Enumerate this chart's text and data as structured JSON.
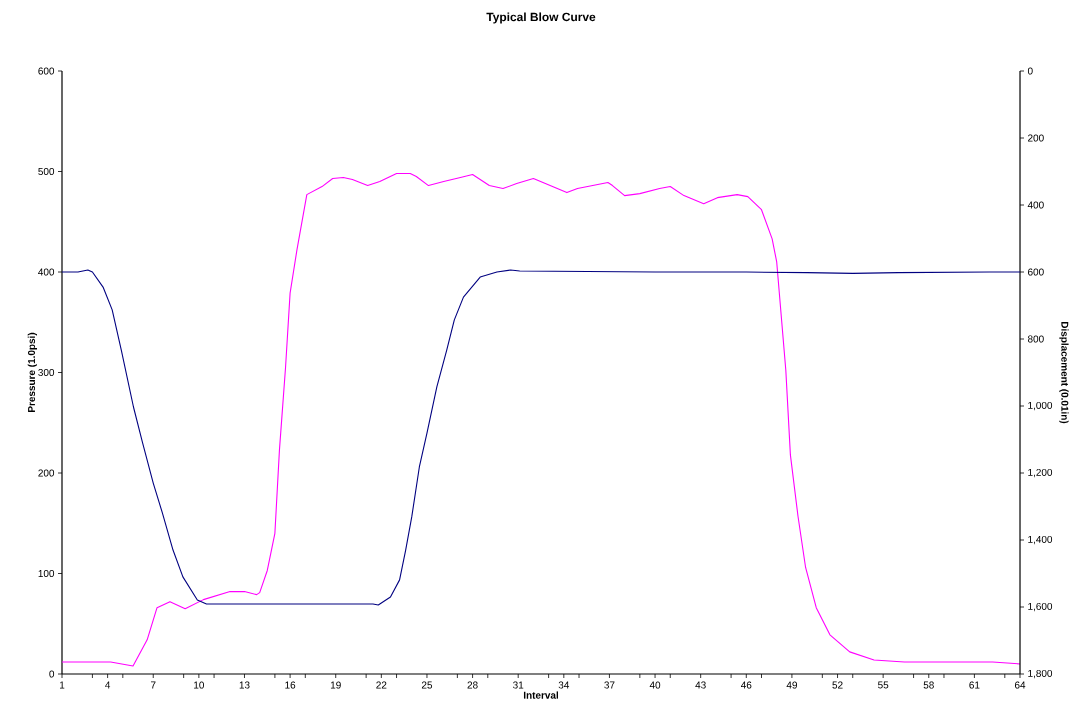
{
  "chart_data": {
    "type": "line",
    "title": "Typical Blow Curve",
    "xlabel": "Interval",
    "ylabel": "Pressure (1.0psi)",
    "y2label": "Displacement (0.01in)",
    "xlim": [
      1,
      64
    ],
    "xticks": [
      1,
      {
        "value": 3,
        "label": null
      },
      4,
      {
        "value": 5,
        "label": null
      },
      7,
      {
        "value": 9,
        "label": null
      },
      10,
      {
        "value": 11,
        "label": null
      },
      13,
      {
        "value": 15,
        "label": null
      },
      16,
      {
        "value": 17,
        "label": null
      },
      19,
      {
        "value": 21,
        "label": null
      },
      22,
      {
        "value": 23,
        "label": null
      },
      25,
      {
        "value": 27,
        "label": null
      },
      28,
      {
        "value": 29,
        "label": null
      },
      31,
      {
        "value": 33,
        "label": null
      },
      34,
      {
        "value": 35,
        "label": null
      },
      37,
      {
        "value": 39,
        "label": null
      },
      40,
      {
        "value": 41,
        "label": null
      },
      43,
      {
        "value": 45,
        "label": null
      },
      46,
      {
        "value": 47,
        "label": null
      },
      49,
      {
        "value": 51,
        "label": null
      },
      52,
      {
        "value": 53,
        "label": null
      },
      55,
      {
        "value": 57,
        "label": null
      },
      58,
      {
        "value": 59,
        "label": null
      },
      61,
      {
        "value": 63,
        "label": null
      },
      64
    ],
    "ylim": [
      0,
      600
    ],
    "yticks": [
      0,
      100,
      200,
      300,
      400,
      500,
      600
    ],
    "y2lim": [
      1800,
      0
    ],
    "y2ticks": [
      0,
      200,
      400,
      600,
      800,
      {
        "value": 1000,
        "label": "1,000"
      },
      {
        "value": 1200,
        "label": "1,200"
      },
      {
        "value": 1400,
        "label": "1,400"
      },
      {
        "value": 1600,
        "label": "1,600"
      },
      {
        "value": 1800,
        "label": "1,800"
      }
    ],
    "series": [
      {
        "color": "#ff00ff",
        "x": [
          1,
          4.2,
          5.67,
          6.6,
          7.25,
          8.1,
          9.1,
          10.3,
          12.05,
          13,
          13.8,
          14,
          14.5,
          15,
          15.3,
          15.7,
          16,
          16.45,
          17.1,
          18.1,
          18.8,
          19.5,
          20.1,
          21.1,
          21.9,
          23,
          23.9,
          24.3,
          25.1,
          26.1,
          27.2,
          28,
          29.1,
          30,
          30.9,
          32,
          33.1,
          34.2,
          34.9,
          35.9,
          36.9,
          37.2,
          38,
          39,
          40.3,
          41,
          41.9,
          43.2,
          44.1,
          45.4,
          46.1,
          47,
          47.7,
          48,
          48.6,
          48.9,
          49.4,
          49.9,
          50.6,
          51.5,
          52.8,
          54.4,
          56.4,
          62.2,
          64
        ],
        "values": [
          12,
          12,
          8,
          34,
          66,
          72,
          65,
          74,
          82,
          82,
          79,
          81,
          103,
          140,
          223,
          305,
          379,
          422,
          477,
          485,
          493,
          494,
          492,
          486,
          490,
          498,
          498,
          495,
          486,
          490,
          494,
          497,
          486,
          483,
          488,
          493,
          486,
          479,
          483,
          486,
          489,
          486,
          476,
          478,
          483,
          485,
          476,
          468,
          474,
          477,
          475,
          462,
          433,
          410,
          302,
          218,
          157,
          106,
          66,
          39,
          22,
          14,
          12,
          12,
          10
        ]
      },
      {
        "color": "#000080",
        "axis": "y2",
        "x": [
          1,
          2.05,
          2.7,
          3,
          3.7,
          4.3,
          4.9,
          5.7,
          6.3,
          7,
          7.6,
          8.3,
          8.95,
          9.9,
          10.5,
          15,
          21.45,
          21.8,
          22.6,
          23.2,
          23.6,
          24,
          24.5,
          25,
          25.65,
          26.3,
          26.8,
          27.4,
          28.5,
          29.6,
          30.5,
          31.1,
          40,
          46,
          50,
          53,
          56,
          62,
          64
        ],
        "values": [
          600,
          600,
          594,
          600,
          645,
          713,
          833,
          1003,
          1110,
          1230,
          1319,
          1430,
          1510,
          1579,
          1591,
          1591,
          1591,
          1594,
          1570,
          1519,
          1430,
          1331,
          1182,
          1081,
          943,
          833,
          743,
          675,
          615,
          600,
          594,
          597,
          600,
          600,
          602,
          604,
          602,
          600,
          600
        ]
      }
    ]
  }
}
